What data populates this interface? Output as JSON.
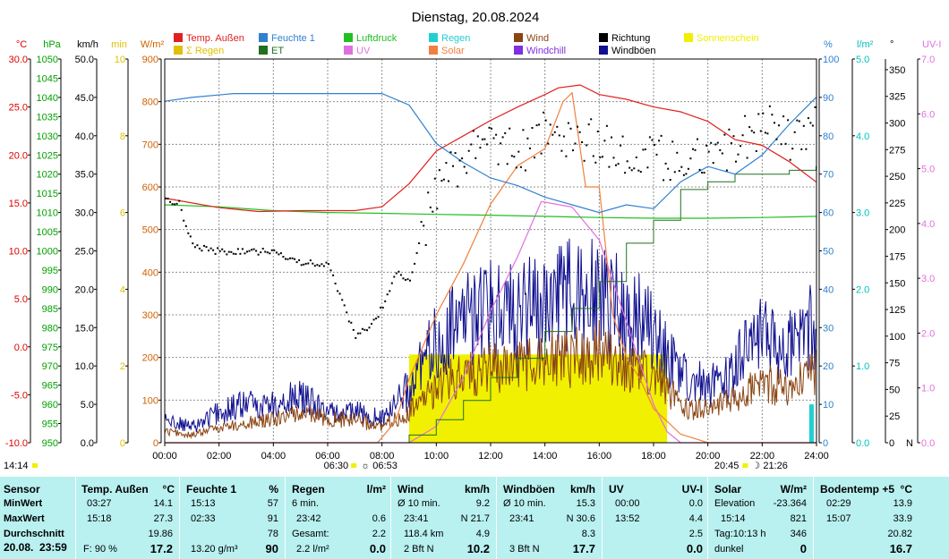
{
  "chart_data": {
    "type": "line",
    "title": "Dienstag, 20.08.2024",
    "x_ticks": [
      "00:00",
      "02:00",
      "04:00",
      "06:00",
      "08:00",
      "10:00",
      "12:00",
      "14:00",
      "16:00",
      "18:00",
      "20:00",
      "22:00",
      "24:00"
    ],
    "xlim": [
      "00:00",
      "24:00"
    ],
    "legend": [
      {
        "name": "Temp. Außen",
        "color": "#e02020"
      },
      {
        "name": "Feuchte 1",
        "color": "#3080d0"
      },
      {
        "name": "Luftdruck",
        "color": "#20c020"
      },
      {
        "name": "Regen",
        "color": "#20d0d0"
      },
      {
        "name": "Wind",
        "color": "#8b4513"
      },
      {
        "name": "Richtung",
        "color": "#000000"
      },
      {
        "name": "Sonnenschein",
        "color": "#f0f000"
      },
      {
        "name": "Σ Regen",
        "color": "#e0c000"
      },
      {
        "name": "ET",
        "color": "#207020"
      },
      {
        "name": "UV",
        "color": "#e070e0"
      },
      {
        "name": "Solar",
        "color": "#f08040"
      },
      {
        "name": "Windchill",
        "color": "#8030e0"
      },
      {
        "name": "Windböen",
        "color": "#101090"
      }
    ],
    "left_axes": [
      {
        "unit": "°C",
        "color": "#e00000",
        "ticks": [
          "30.0",
          "25.0",
          "20.0",
          "15.0",
          "10.0",
          "5.0",
          "0.0",
          "-5.0",
          "-10.0"
        ]
      },
      {
        "unit": "hPa",
        "color": "#00a000",
        "ticks": [
          "1050",
          "1045",
          "1040",
          "1035",
          "1030",
          "1025",
          "1020",
          "1015",
          "1010",
          "1005",
          "1000",
          "995",
          "990",
          "985",
          "980",
          "975",
          "970",
          "965",
          "960",
          "955",
          "950"
        ]
      },
      {
        "unit": "km/h",
        "color": "#000000",
        "ticks": [
          "50.0",
          "45.0",
          "40.0",
          "35.0",
          "30.0",
          "25.0",
          "20.0",
          "15.0",
          "10.0",
          "5.0",
          "0.0"
        ]
      },
      {
        "unit": "min",
        "color": "#e0c000",
        "ticks": [
          "10",
          "8",
          "6",
          "4",
          "2",
          "0"
        ]
      },
      {
        "unit": "W/m²",
        "color": "#d06000",
        "ticks": [
          "900",
          "800",
          "700",
          "600",
          "500",
          "400",
          "300",
          "200",
          "100",
          "0"
        ]
      }
    ],
    "right_axes": [
      {
        "unit": "%",
        "color": "#3080d0",
        "ticks": [
          "100",
          "90",
          "80",
          "70",
          "60",
          "50",
          "40",
          "30",
          "20",
          "10",
          "0"
        ]
      },
      {
        "unit": "l/m²",
        "color": "#00c0c0",
        "ticks": [
          "5.0",
          "4.0",
          "3.0",
          "2.0",
          "1.0",
          "0.0"
        ]
      },
      {
        "unit": "°",
        "color": "#000000",
        "ticks": [
          "350",
          "325",
          "300",
          "275",
          "250",
          "225",
          "200",
          "175",
          "150",
          "125",
          "100",
          "75",
          "50",
          "25",
          "0"
        ],
        "bottom_label": "N"
      },
      {
        "unit": "UV-I",
        "color": "#e070e0",
        "ticks": [
          "7.0",
          "6.0",
          "5.0",
          "4.0",
          "3.0",
          "2.0",
          "1.0",
          "0.0"
        ]
      }
    ],
    "series": [
      {
        "name": "Temp. Außen",
        "axis": "°C",
        "x": [
          "00:00",
          "01:00",
          "02:00",
          "03:27",
          "05:00",
          "07:00",
          "08:00",
          "09:00",
          "10:00",
          "11:00",
          "12:00",
          "13:00",
          "14:00",
          "14:30",
          "15:18",
          "16:00",
          "17:00",
          "18:00",
          "19:00",
          "20:00",
          "21:00",
          "22:00",
          "23:00",
          "23:59"
        ],
        "y": [
          15.5,
          15.0,
          14.5,
          14.1,
          14.2,
          14.2,
          14.6,
          17.0,
          20.4,
          22.0,
          23.6,
          25.0,
          26.3,
          27.0,
          27.3,
          26.3,
          25.8,
          25.0,
          24.5,
          23.5,
          21.6,
          21.0,
          19.3,
          17.2
        ]
      },
      {
        "name": "Feuchte 1",
        "axis": "%",
        "x": [
          "00:00",
          "01:00",
          "02:33",
          "04:00",
          "06:00",
          "08:00",
          "09:00",
          "10:00",
          "11:00",
          "12:00",
          "13:00",
          "14:00",
          "15:00",
          "16:00",
          "17:00",
          "18:00",
          "19:00",
          "20:00",
          "21:00",
          "22:00",
          "23:00",
          "23:59"
        ],
        "y": [
          89,
          90,
          91,
          91,
          91,
          91,
          88,
          78,
          73,
          69,
          67,
          64,
          62,
          60,
          62,
          61,
          68,
          72,
          70,
          75,
          83,
          90
        ]
      },
      {
        "name": "Luftdruck",
        "axis": "hPa",
        "x": [
          "00:00",
          "02:00",
          "04:00",
          "06:00",
          "08:00",
          "10:00",
          "12:00",
          "14:00",
          "16:00",
          "18:00",
          "20:00",
          "22:00",
          "24:00"
        ],
        "y": [
          1012,
          1011.5,
          1010.5,
          1010,
          1009.8,
          1009.5,
          1009.3,
          1009,
          1008.7,
          1008.5,
          1008.5,
          1008.7,
          1009
        ]
      },
      {
        "name": "ET",
        "axis": "l/m²",
        "x": [
          "00:00",
          "08:30",
          "09:00",
          "10:00",
          "11:00",
          "12:00",
          "13:00",
          "14:00",
          "15:00",
          "16:00",
          "17:00",
          "18:00",
          "19:00",
          "20:00",
          "21:00",
          "22:00",
          "23:00",
          "23:59"
        ],
        "y": [
          0,
          0,
          0.1,
          0.3,
          0.55,
          0.85,
          1.1,
          1.45,
          1.75,
          2.1,
          2.6,
          2.9,
          3.3,
          3.4,
          3.5,
          3.5,
          3.55,
          3.6
        ]
      },
      {
        "name": "Solar",
        "axis": "W/m²",
        "x": [
          "00:00",
          "07:50",
          "08:30",
          "09:00",
          "10:00",
          "11:00",
          "12:00",
          "13:00",
          "14:00",
          "14:40",
          "15:00",
          "15:30",
          "16:00",
          "16:30",
          "17:00",
          "17:30",
          "18:00",
          "18:30",
          "19:00",
          "19:30",
          "20:00",
          "24:00"
        ],
        "y": [
          0,
          0,
          50,
          150,
          300,
          420,
          560,
          650,
          690,
          800,
          821,
          600,
          600,
          300,
          200,
          150,
          80,
          50,
          20,
          10,
          0,
          0
        ]
      },
      {
        "name": "UV",
        "axis": "UV-I",
        "x": [
          "00:00",
          "09:00",
          "10:00",
          "11:00",
          "12:00",
          "13:00",
          "13:52",
          "15:00",
          "16:00",
          "17:00",
          "18:00",
          "18:30",
          "19:00",
          "24:00"
        ],
        "y": [
          0,
          0,
          0.3,
          1.2,
          2.4,
          3.4,
          4.4,
          4.3,
          3.7,
          2.2,
          0.7,
          0.2,
          0,
          0
        ]
      },
      {
        "name": "Richtung",
        "axis": "°",
        "type": "scatter",
        "x": [
          "00:00",
          "00:30",
          "01:00",
          "02:00",
          "04:00",
          "05:00",
          "06:00",
          "07:00",
          "07:45",
          "08:30",
          "09:00",
          "09:30",
          "10:00",
          "11:00",
          "12:00",
          "13:00",
          "14:00",
          "15:00",
          "16:00",
          "17:00",
          "18:00",
          "19:00",
          "20:00",
          "21:00",
          "22:00",
          "23:00",
          "23:59"
        ],
        "y": [
          230,
          225,
          185,
          180,
          180,
          170,
          168,
          100,
          115,
          160,
          155,
          200,
          240,
          270,
          285,
          275,
          290,
          280,
          285,
          275,
          270,
          265,
          275,
          280,
          300,
          285,
          300
        ]
      },
      {
        "name": "Wind",
        "axis": "km/h",
        "x": [
          "00:00",
          "01:00",
          "02:00",
          "03:00",
          "04:00",
          "05:00",
          "06:00",
          "07:00",
          "08:00",
          "09:00",
          "10:00",
          "11:00",
          "12:00",
          "13:00",
          "14:00",
          "15:00",
          "16:00",
          "17:00",
          "18:00",
          "19:00",
          "20:00",
          "21:00",
          "22:00",
          "23:00",
          "23:59"
        ],
        "y": [
          1.5,
          1,
          2,
          2.5,
          3,
          4,
          3,
          3,
          2,
          4,
          7,
          9,
          10,
          10,
          11,
          11,
          12,
          10,
          9,
          5,
          4,
          6,
          8,
          7,
          9
        ]
      },
      {
        "name": "Windböen",
        "axis": "km/h",
        "x": [
          "00:00",
          "01:00",
          "02:00",
          "03:00",
          "04:00",
          "05:00",
          "06:00",
          "07:00",
          "08:00",
          "09:00",
          "10:00",
          "11:00",
          "12:00",
          "13:00",
          "14:00",
          "15:00",
          "16:00",
          "17:00",
          "18:00",
          "19:00",
          "20:00",
          "21:00",
          "22:00",
          "23:00",
          "23:59"
        ],
        "y": [
          3,
          2,
          4,
          5,
          5,
          6,
          4,
          4,
          3,
          7,
          13,
          16,
          17,
          18,
          18,
          20,
          19,
          17,
          15,
          9,
          7,
          10,
          14,
          13,
          16
        ]
      }
    ],
    "sunshine": {
      "axis": "min",
      "x": [
        "09:00",
        "18:30"
      ],
      "level": 2.3
    },
    "rain_markers": [
      {
        "x": "23:50",
        "y": 0.5
      }
    ],
    "markers": {
      "left_time": "14:14",
      "sunrise": "06:30",
      "sunrise_label": "06:53",
      "sunset": "20:45",
      "sunset_label": "21:26"
    }
  },
  "stats": {
    "sensor": {
      "title": "Sensor",
      "min": "MinWert",
      "max": "MaxWert",
      "avg": "Durchschnitt",
      "date": "20.08.",
      "time": "23:59"
    },
    "temp": {
      "title": "Temp. Außen",
      "unit": "°C",
      "min_time": "03:27",
      "min": "14.1",
      "max_time": "15:18",
      "max": "27.3",
      "avg": "19.86",
      "extra": "F: 90 %",
      "current": "17.2"
    },
    "hum": {
      "title": "Feuchte 1",
      "unit": "%",
      "min_time": "15:13",
      "min": "57",
      "max_time": "02:33",
      "max": "91",
      "avg": "78",
      "extra": "13.20 g/m³",
      "current": "90"
    },
    "rain": {
      "title": "Regen",
      "unit": "l/m²",
      "r1_label": "6 min.",
      "r1_val": "",
      "r2_label": "23:42",
      "r2_val": "0.6",
      "r3_label": "Gesamt:",
      "r3_val": "2.2",
      "extra": "2.2 l/m²",
      "current": "0.0"
    },
    "wind": {
      "title": "Wind",
      "unit": "km/h",
      "r1_label": "Ø 10 min.",
      "r1_val": "9.2",
      "r2_label": "23:41",
      "r2_val": "N 21.7",
      "r3_label": "118.4 km",
      "r3_val": "4.9",
      "extra": "2 Bft N",
      "current": "10.2"
    },
    "gust": {
      "title": "Windböen",
      "unit": "km/h",
      "r1_label": "Ø 10 min.",
      "r1_val": "15.3",
      "r2_label": "23:41",
      "r2_val": "N 30.6",
      "r3_val": "8.3",
      "extra": "3 Bft N",
      "current": "17.7"
    },
    "uv": {
      "title": "UV",
      "unit": "UV-I",
      "r1_label": "00:00",
      "r1_val": "0.0",
      "r2_label": "13:52",
      "r2_val": "4.4",
      "r3_val": "2.5",
      "current": "0.0"
    },
    "solar": {
      "title": "Solar",
      "unit": "W/m²",
      "r1_label": "Elevation",
      "r1_val": "-23.364",
      "r2_label": "15:14",
      "r2_val": "821",
      "r3_label": "Tag:10:13 h",
      "r3_val": "346",
      "extra": "dunkel",
      "current": "0"
    },
    "soil": {
      "title": "Bodentemp +5",
      "unit": "°C",
      "r1_label": "02:29",
      "r1_val": "13.9",
      "r2_label": "15:07",
      "r2_val": "33.9",
      "r3_val": "20.82",
      "current": "16.7"
    }
  }
}
